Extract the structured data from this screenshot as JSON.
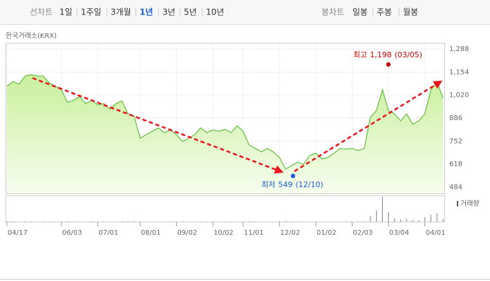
{
  "toolbar": {
    "line_chart": "선차트",
    "periods": [
      "1일",
      "1주일",
      "3개월",
      "1년",
      "3년",
      "5년",
      "10년"
    ],
    "selected": 3,
    "candle_chart": "봉차트",
    "candles": [
      "일봉",
      "주봉",
      "월봉"
    ]
  },
  "source": "한국거래소(KRX)",
  "chart_data": {
    "type": "area",
    "color": "#6cc04a",
    "values": [
      1071,
      1099,
      1083,
      1131,
      1139,
      1131,
      1131,
      1091,
      1071,
      1051,
      978,
      990,
      1010,
      970,
      990,
      962,
      970,
      938,
      970,
      986,
      910,
      898,
      769,
      789,
      809,
      829,
      801,
      817,
      789,
      749,
      769,
      789,
      829,
      801,
      817,
      809,
      821,
      801,
      841,
      809,
      729,
      709,
      689,
      709,
      689,
      657,
      589,
      609,
      629,
      617,
      669,
      681,
      649,
      657,
      681,
      709,
      705,
      709,
      697,
      709,
      890,
      930,
      1051,
      930,
      910,
      870,
      910,
      850,
      870,
      910,
      1051,
      1099,
      1002
    ],
    "volume_name": "거래량",
    "volume": [
      2,
      2,
      1,
      2,
      1,
      1,
      2,
      1,
      1,
      2,
      2,
      1,
      1,
      1,
      2,
      1,
      1,
      1,
      1,
      2,
      2,
      3,
      2,
      1,
      1,
      1,
      1,
      1,
      1,
      2,
      1,
      1,
      1,
      1,
      1,
      1,
      1,
      1,
      1,
      1,
      2,
      1,
      1,
      1,
      1,
      2,
      3,
      2,
      1,
      1,
      1,
      1,
      1,
      1,
      1,
      1,
      1,
      1,
      1,
      2,
      20,
      40,
      90,
      35,
      12,
      8,
      10,
      6,
      5,
      15,
      25,
      30,
      10
    ],
    "xlim": [
      0,
      72
    ],
    "xticks": [
      {
        "value": 0,
        "label": "04/17"
      },
      {
        "value": 9,
        "label": "06/03"
      },
      {
        "value": 15,
        "label": "07/01"
      },
      {
        "value": 22,
        "label": "08/01"
      },
      {
        "value": 28,
        "label": "09/02"
      },
      {
        "value": 34,
        "label": "10/02"
      },
      {
        "value": 39,
        "label": "11/01"
      },
      {
        "value": 45,
        "label": "12/02"
      },
      {
        "value": 51,
        "label": "01/02"
      },
      {
        "value": 57,
        "label": "02/03"
      },
      {
        "value": 63,
        "label": "03/04"
      },
      {
        "value": 69,
        "label": "04/01"
      }
    ],
    "ylim": [
      484,
      1288
    ],
    "yticks": [
      {
        "value": 484,
        "label": "484"
      },
      {
        "value": 618,
        "label": "618"
      },
      {
        "value": 752,
        "label": "752"
      },
      {
        "value": 886,
        "label": "886"
      },
      {
        "value": 1020,
        "label": "1,020"
      },
      {
        "value": 1154,
        "label": "1,154"
      },
      {
        "value": 1288,
        "label": "1,288"
      }
    ],
    "grid": true,
    "high": {
      "label": "최고",
      "value": 1198,
      "value_label": "1,198",
      "date": "(03/05)",
      "color": "#cc0000"
    },
    "low": {
      "label": "최저",
      "value": 549,
      "value_label": "549",
      "date": "(12/10)",
      "color": "#1a5fcf"
    }
  }
}
